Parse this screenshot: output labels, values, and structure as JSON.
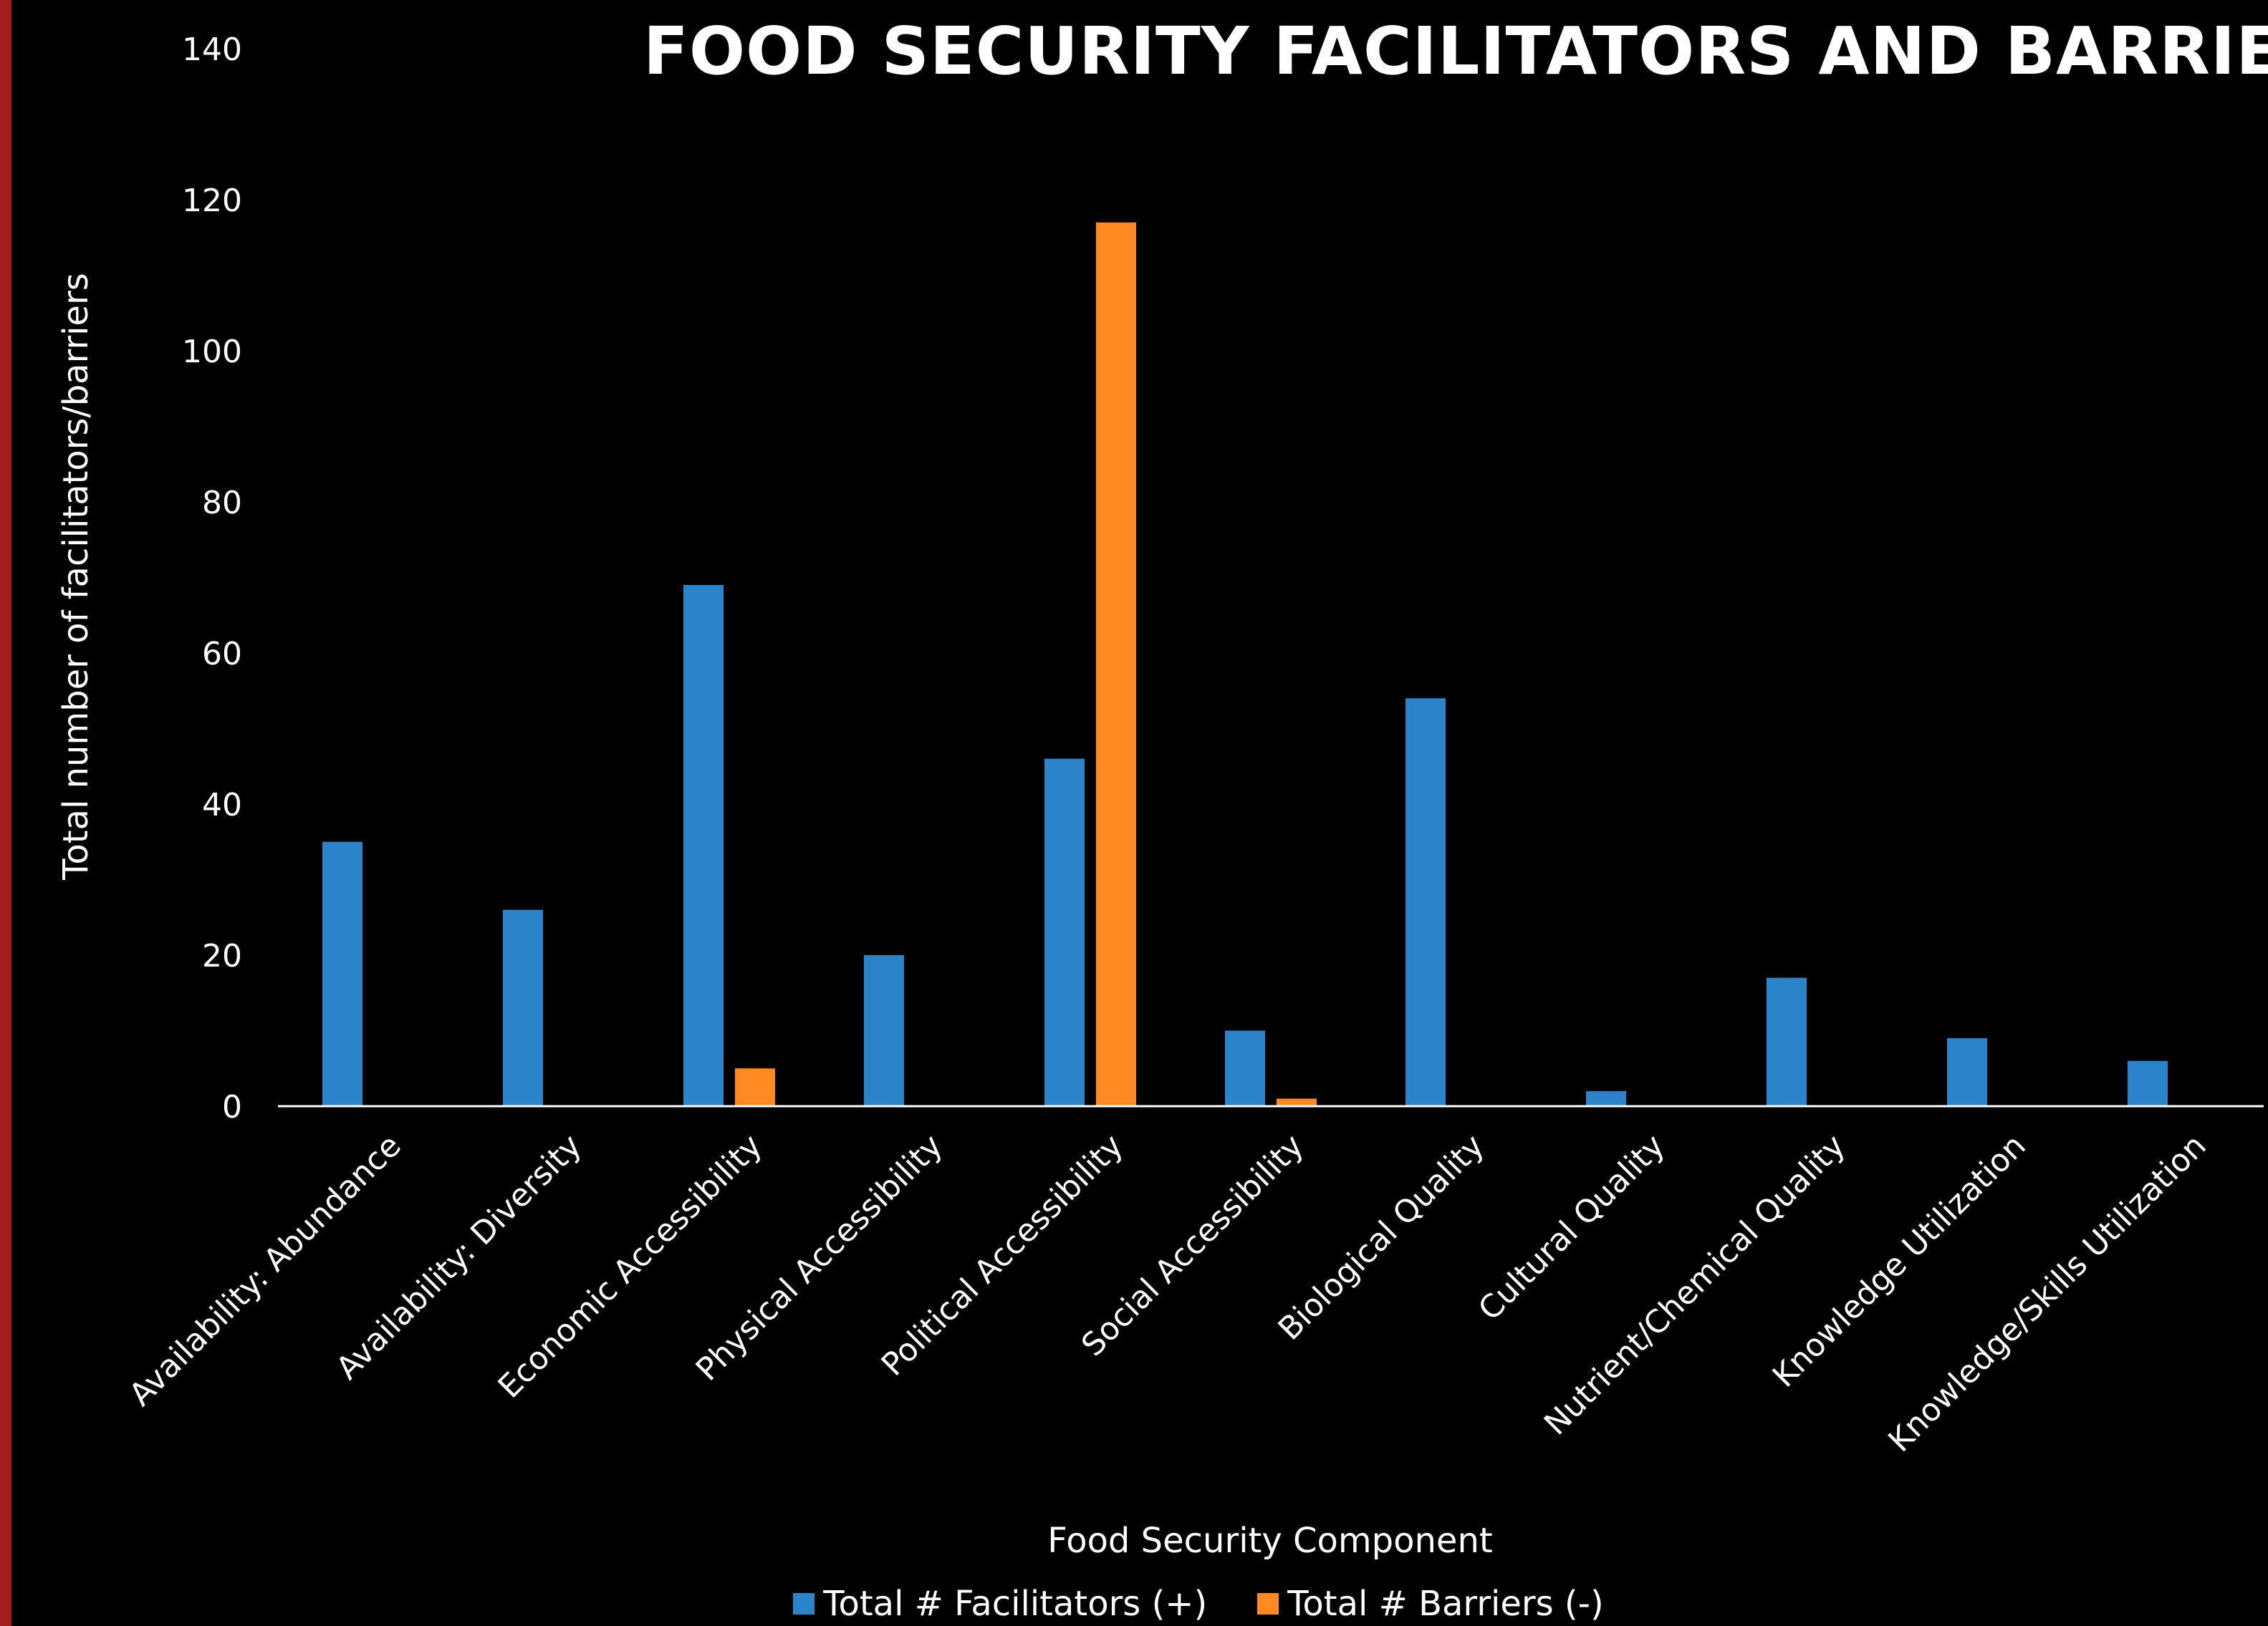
{
  "chart_data": {
    "type": "bar",
    "title": "FOOD SECURITY FACILITATORS AND BARRIERS",
    "xlabel": "Food Security Component",
    "ylabel": "Total number of facilitators/barriers",
    "ylim": [
      0,
      140
    ],
    "yticks": [
      "0",
      "20",
      "40",
      "60",
      "80",
      "100",
      "120",
      "140"
    ],
    "grid": false,
    "legend_position": "bottom",
    "categories": [
      "Availability: Abundance",
      "Availability: Diversity",
      "Economic Accessibility",
      "Physical Accessibility",
      "Political Accessibility",
      "Social Accessibility",
      "Biological Quality",
      "Cultural Quality",
      "Nutrient/Chemical Quality",
      "Knowledge Utilization",
      "Knowledge/Skills Utilization"
    ],
    "series": [
      {
        "name": "Total # Facilitators (+)",
        "color": "#2b83c9",
        "values": [
          35,
          26,
          69,
          20,
          46,
          10,
          54,
          2,
          17,
          9,
          6
        ]
      },
      {
        "name": "Total # Barriers (-)",
        "color": "#ff8a24",
        "values": [
          0,
          0,
          5,
          0,
          117,
          1,
          0,
          0,
          0,
          0,
          0
        ]
      }
    ]
  },
  "colors": {
    "background": "#000000",
    "accent_rule": "#a51c1c",
    "axis_line": "#ffffff",
    "text": "#ffffff"
  }
}
